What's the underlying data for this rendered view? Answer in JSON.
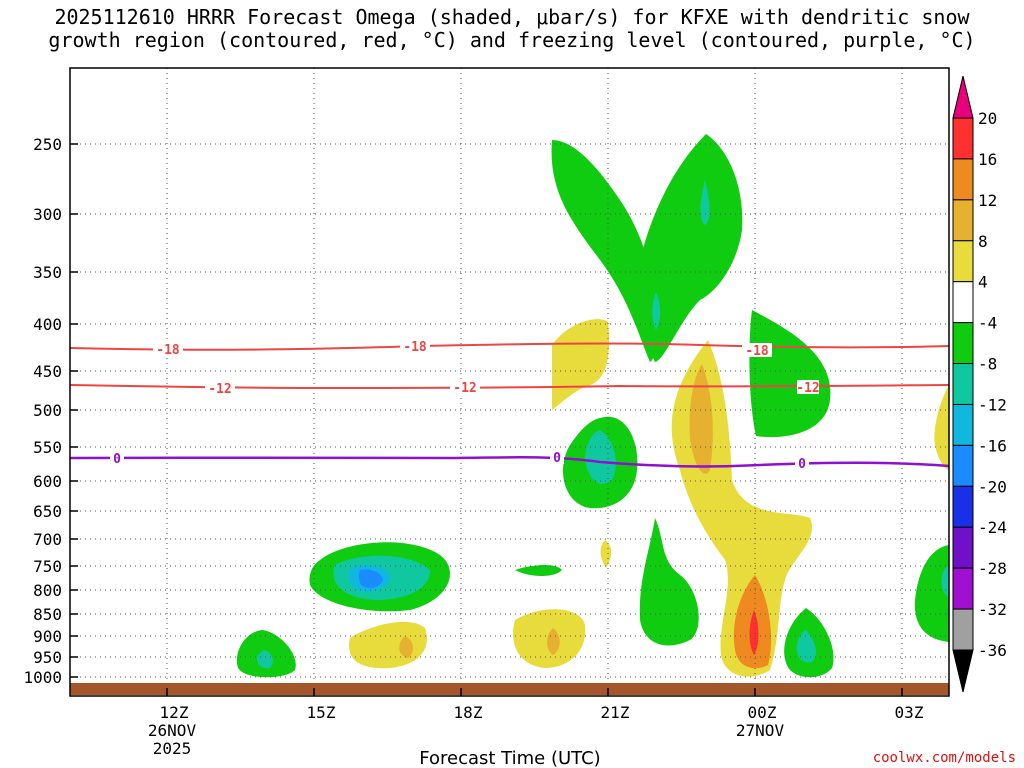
{
  "title_line1": "2025112610 HRRR Forecast Omega (shaded, μbar/s) for KFXE with dendritic snow",
  "title_line2": "growth region (contoured, red, °C) and freezing level (contoured, purple, °C)",
  "xlabel": "Forecast Time (UTC)",
  "credit": "coolwx.com/models",
  "chart_data": {
    "type": "heatmap",
    "y_axis": {
      "ticks": [
        "250",
        "300",
        "350",
        "400",
        "450",
        "500",
        "550",
        "600",
        "650",
        "700",
        "750",
        "800",
        "850",
        "900",
        "950",
        "1000"
      ]
    },
    "x_axis": {
      "ticks": [
        {
          "label": "12Z",
          "sub": [
            "26NOV",
            "2025"
          ]
        },
        {
          "label": "15Z",
          "sub": []
        },
        {
          "label": "18Z",
          "sub": []
        },
        {
          "label": "21Z",
          "sub": []
        },
        {
          "label": "00Z",
          "sub": [
            "27NOV"
          ]
        },
        {
          "label": "03Z",
          "sub": []
        }
      ]
    },
    "grid": true,
    "colorbar": {
      "labels": [
        "20",
        "16",
        "12",
        "8",
        "4",
        "-4",
        "-8",
        "-12",
        "-16",
        "-20",
        "-24",
        "-28",
        "-32",
        "-36"
      ],
      "colors": [
        "#e8007a",
        "#ff3030",
        "#ee8a20",
        "#e6b030",
        "#e8dc3c",
        "#ffffff",
        "#10cc10",
        "#10c8a0",
        "#10b8e0",
        "#1a8cff",
        "#1a30e8",
        "#7010c8",
        "#a010d0",
        "#a0a0a0",
        "#000000"
      ]
    },
    "contours": [
      {
        "label": "-18",
        "color": "#ee4444",
        "level_hpa": 427
      },
      {
        "label": "-12",
        "color": "#ee4444",
        "level_hpa": 471
      },
      {
        "label": "0",
        "color": "#9010d0",
        "level_hpa": 570
      }
    ]
  }
}
